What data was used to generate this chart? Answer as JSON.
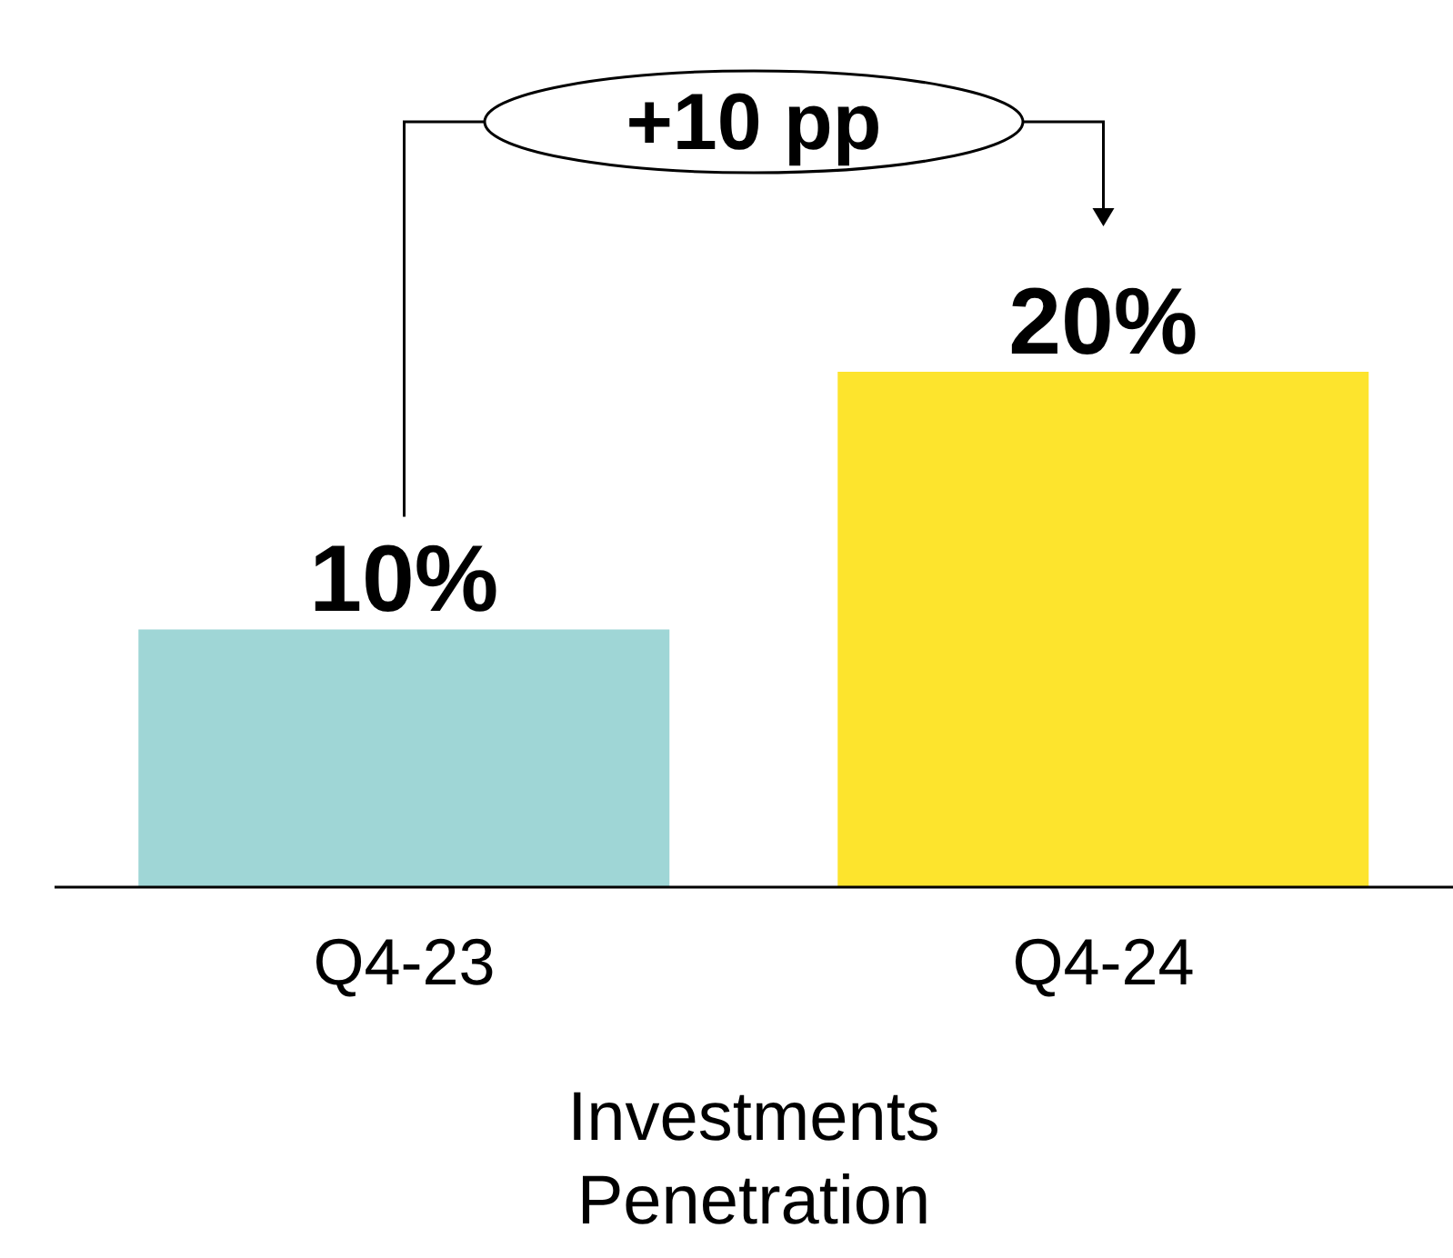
{
  "chart_data": {
    "type": "bar",
    "categories": [
      "Q4-23",
      "Q4-24"
    ],
    "values": [
      10,
      20
    ],
    "colors": [
      "#9fd6d6",
      "#fde42d"
    ],
    "value_labels": [
      "10%",
      "20%"
    ],
    "xlabel": "Investments\nPenetration",
    "annotations": [
      "+10 pp"
    ],
    "grid": false,
    "legend": false
  }
}
